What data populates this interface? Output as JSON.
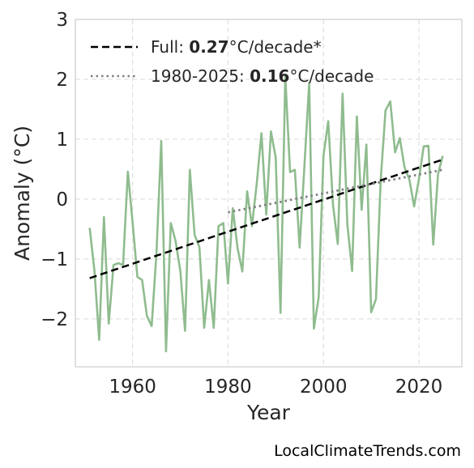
{
  "chart_data": {
    "type": "line",
    "xlabel": "Year",
    "ylabel": "Anomaly (°C)",
    "xlim": [
      1948,
      2029
    ],
    "ylim": [
      -2.8,
      3.0
    ],
    "xticks": [
      1960,
      1980,
      2000,
      2020
    ],
    "xtick_labels": [
      "1960",
      "1980",
      "2000",
      "2020"
    ],
    "yticks": [
      -2,
      -1,
      0,
      1,
      2,
      3
    ],
    "ytick_labels": [
      "−2",
      "−1",
      "0",
      "1",
      "2",
      "3"
    ],
    "grid": true,
    "legend_position": "top-left",
    "series": [
      {
        "kind": "anomaly",
        "color": "#8fbc8f",
        "x": [
          1951,
          1952,
          1953,
          1954,
          1955,
          1956,
          1957,
          1958,
          1959,
          1960,
          1961,
          1962,
          1963,
          1964,
          1965,
          1966,
          1967,
          1968,
          1969,
          1970,
          1971,
          1972,
          1973,
          1974,
          1975,
          1976,
          1977,
          1978,
          1979,
          1980,
          1981,
          1982,
          1983,
          1984,
          1985,
          1986,
          1987,
          1988,
          1989,
          1990,
          1991,
          1992,
          1993,
          1994,
          1995,
          1996,
          1997,
          1998,
          1999,
          2000,
          2001,
          2002,
          2003,
          2004,
          2005,
          2006,
          2007,
          2008,
          2009,
          2010,
          2011,
          2012,
          2013,
          2014,
          2015,
          2016,
          2017,
          2018,
          2019,
          2020,
          2021,
          2022,
          2023,
          2024,
          2025
        ],
        "y": [
          -0.48,
          -1.2,
          -2.35,
          -0.3,
          -2.08,
          -1.1,
          -1.07,
          -1.1,
          0.46,
          -0.4,
          -1.3,
          -1.35,
          -1.95,
          -2.12,
          -0.9,
          0.97,
          -2.54,
          -0.4,
          -0.7,
          -1.2,
          -2.2,
          0.49,
          -0.6,
          -0.8,
          -2.15,
          -1.35,
          -2.15,
          -0.45,
          -0.4,
          -1.41,
          -0.15,
          -0.82,
          -1.21,
          0.13,
          -0.45,
          0.25,
          1.1,
          -0.26,
          1.13,
          0.69,
          -1.9,
          2.05,
          0.45,
          0.49,
          -0.81,
          0.55,
          1.94,
          -2.16,
          -1.64,
          0.72,
          1.3,
          -0.1,
          -0.75,
          1.76,
          -0.42,
          -1.2,
          1.38,
          -0.18,
          0.91,
          -1.89,
          -1.67,
          0.33,
          1.48,
          1.63,
          0.78,
          1.02,
          0.53,
          0.33,
          -0.12,
          0.33,
          0.88,
          0.89,
          -0.76,
          0.42,
          0.72
        ]
      },
      {
        "kind": "trend-full",
        "name": "Full: 0.27°C/decade*",
        "color": "#000000",
        "x": [
          1951,
          2025
        ],
        "y": [
          -1.32,
          0.66
        ]
      },
      {
        "kind": "trend-recent",
        "name": "1980-2025: 0.16°C/decade",
        "color": "#808080",
        "x": [
          1980,
          2025
        ],
        "y": [
          -0.22,
          0.49
        ]
      }
    ],
    "legend": {
      "full_prefix": "Full: ",
      "full_value": "0.27",
      "full_suffix": "°C/decade*",
      "recent_prefix": "1980-2025: ",
      "recent_value": "0.16",
      "recent_suffix": "°C/decade"
    }
  },
  "footer": {
    "credit": "LocalClimateTrends.com"
  }
}
